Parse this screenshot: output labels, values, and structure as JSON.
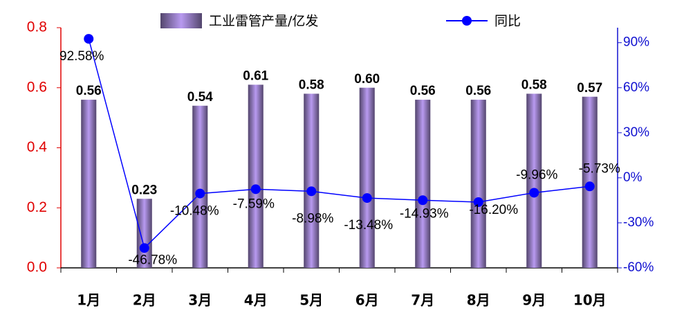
{
  "chart_data": {
    "type": "bar-line",
    "categories": [
      "1月",
      "2月",
      "3月",
      "4月",
      "5月",
      "6月",
      "7月",
      "8月",
      "9月",
      "10月"
    ],
    "series": [
      {
        "name": "工业雷管产量/亿发",
        "type": "bar",
        "color": "#b89af0",
        "values": [
          0.56,
          0.23,
          0.54,
          0.61,
          0.58,
          0.6,
          0.56,
          0.56,
          0.58,
          0.57
        ],
        "value_labels": [
          "0.56",
          "0.23",
          "0.54",
          "0.61",
          "0.58",
          "0.60",
          "0.56",
          "0.56",
          "0.58",
          "0.57"
        ]
      },
      {
        "name": "同比",
        "type": "line",
        "axis": "y2",
        "color": "#0000ff",
        "values": [
          92.58,
          -46.78,
          -10.48,
          -7.59,
          -8.98,
          -13.48,
          -14.93,
          -16.2,
          -9.96,
          -5.73
        ],
        "value_labels": [
          "92.58%",
          "-46.78%",
          "-10.48%",
          "-7.59%",
          "-8.98%",
          "-13.48%",
          "-14.93%",
          "-16.20%",
          "-9.96%",
          "-5.73%"
        ]
      }
    ],
    "ylim": [
      0,
      0.8
    ],
    "yticks": [
      {
        "value": 0,
        "label": "0.0"
      },
      0.2,
      0.4,
      0.6,
      0.8
    ],
    "y2lim": [
      -60,
      100
    ],
    "y2ticks": [
      {
        "value": -60,
        "label": "-60%"
      },
      {
        "value": -30,
        "label": "-30%"
      },
      {
        "value": 0,
        "label": "0%"
      },
      {
        "value": 30,
        "label": "30%"
      },
      {
        "value": 60,
        "label": "60%"
      },
      {
        "value": 90,
        "label": "90%"
      }
    ]
  }
}
